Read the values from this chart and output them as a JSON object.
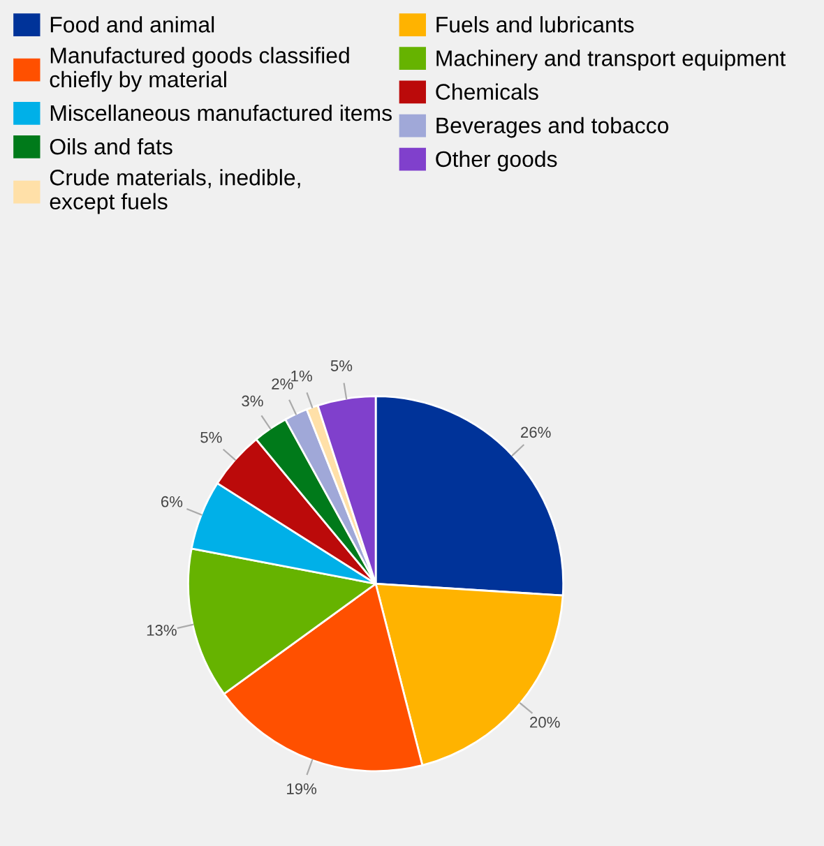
{
  "chart_data": {
    "type": "pie",
    "categories": [
      "Food and animal",
      "Fuels and lubricants",
      "Manufactured goods classified\nchiefly by material",
      "Machinery and transport equipment",
      "Miscellaneous manufactured items",
      "Chemicals",
      "Oils and fats",
      "Beverages and tobacco",
      "Crude materials, inedible,\nexcept fuels",
      "Other goods"
    ],
    "values": [
      26,
      20,
      19,
      13,
      6,
      5,
      3,
      2,
      1,
      5
    ],
    "value_labels": [
      "26%",
      "20%",
      "19%",
      "13%",
      "6%",
      "5%",
      "3%",
      "2%",
      "1%",
      "5%"
    ],
    "colors": [
      "#003399",
      "#ffb300",
      "#ff5000",
      "#66b300",
      "#00b0e8",
      "#bb0a0a",
      "#007a1a",
      "#a0a8d8",
      "#ffe0a8",
      "#8040cc"
    ],
    "legend": "top"
  }
}
